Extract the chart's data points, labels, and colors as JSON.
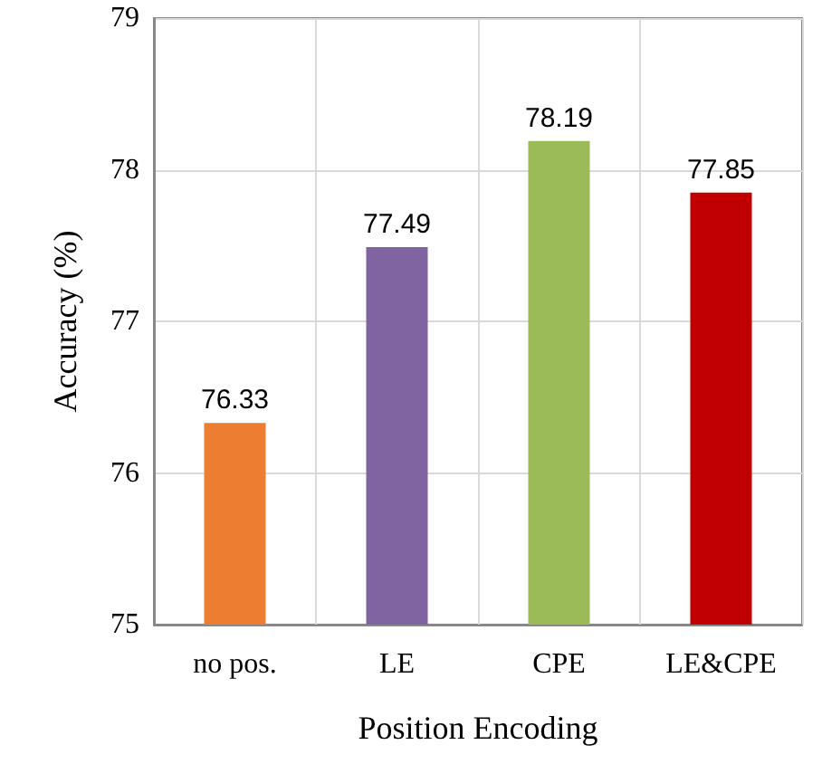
{
  "chart_data": {
    "type": "bar",
    "xlabel": "Position Encoding",
    "ylabel": "Accuracy (%)",
    "categories": [
      "no pos.",
      "LE",
      "CPE",
      "LE&CPE"
    ],
    "values": [
      76.33,
      77.49,
      78.19,
      77.85
    ],
    "colors": [
      "#ed7d31",
      "#8064a2",
      "#9bbb59",
      "#c00000"
    ],
    "ylim": [
      75,
      79
    ],
    "yticks": [
      75,
      76,
      77,
      78,
      79
    ],
    "grid": true,
    "data_labels": true
  }
}
